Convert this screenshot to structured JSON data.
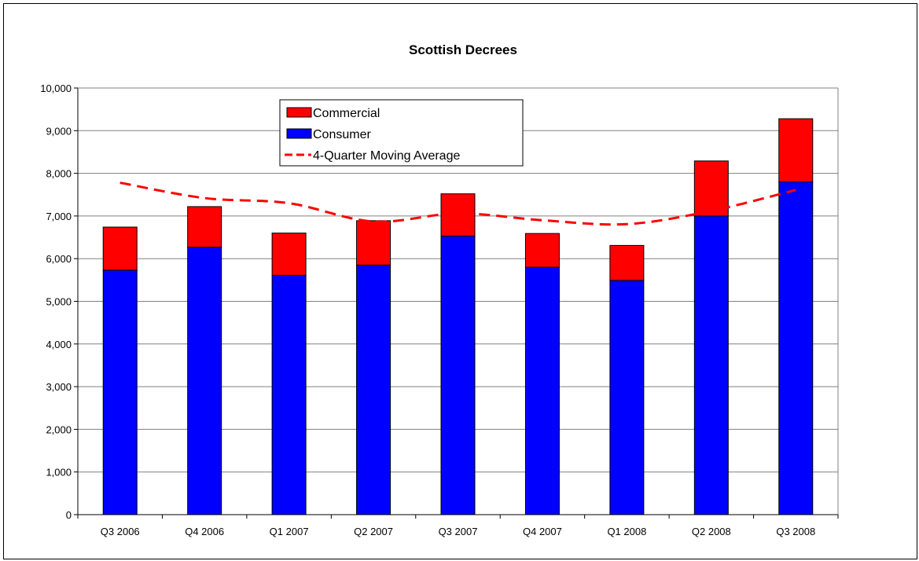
{
  "chart_data": {
    "type": "bar",
    "stacked": true,
    "title": "Scottish Decrees",
    "xlabel": "",
    "ylabel": "",
    "ylim": [
      0,
      10000
    ],
    "yticks": [
      "0",
      "1,000",
      "2,000",
      "3,000",
      "4,000",
      "5,000",
      "6,000",
      "7,000",
      "8,000",
      "9,000",
      "10,000"
    ],
    "categories": [
      "Q3 2006",
      "Q4 2006",
      "Q1 2007",
      "Q2 2007",
      "Q3 2007",
      "Q4 2007",
      "Q1 2008",
      "Q2 2008",
      "Q3 2008"
    ],
    "series": [
      {
        "name": "Consumer",
        "kind": "bar",
        "color": "#0000ff",
        "values": [
          5730,
          6270,
          5610,
          5850,
          6530,
          5800,
          5490,
          7000,
          7800
        ]
      },
      {
        "name": "Commercial",
        "kind": "bar",
        "color": "#ff0000",
        "values": [
          1010,
          950,
          990,
          1040,
          990,
          790,
          820,
          1290,
          1480
        ]
      },
      {
        "name": "4-Quarter Moving Average",
        "kind": "line",
        "style": "dashed",
        "color": "#ff0000",
        "values": [
          7780,
          7420,
          7300,
          6870,
          7060,
          6900,
          6810,
          7120,
          7610
        ]
      }
    ],
    "legend": {
      "placement": "top-center",
      "entries": [
        "Commercial",
        "Consumer",
        "4-Quarter Moving Average"
      ]
    },
    "grid": true
  }
}
